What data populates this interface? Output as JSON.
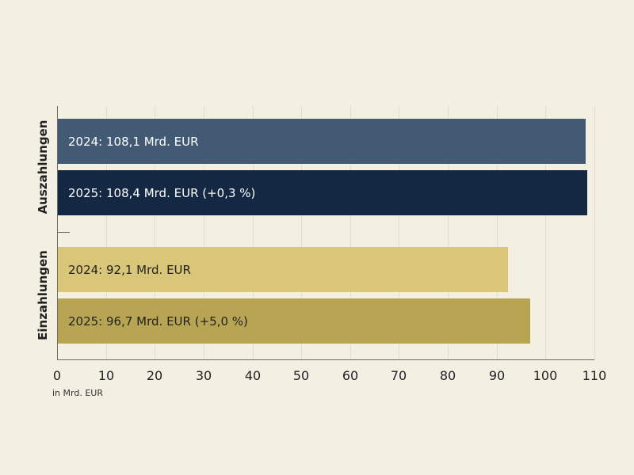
{
  "chart_data": {
    "type": "bar",
    "orientation": "horizontal",
    "title": "",
    "xlabel": "in Mrd. EUR",
    "ylabel": "",
    "xlim": [
      0,
      110
    ],
    "x_ticks": [
      "0",
      "10",
      "20",
      "30",
      "40",
      "50",
      "60",
      "70",
      "80",
      "90",
      "100",
      "110"
    ],
    "grid": true,
    "categories": [
      "Auszahlungen",
      "Einzahlungen"
    ],
    "series": [
      {
        "name": "2024",
        "values": [
          108.1,
          92.1
        ]
      },
      {
        "name": "2025",
        "values": [
          108.4,
          96.7
        ]
      }
    ],
    "bars": [
      {
        "group": "Auszahlungen",
        "year": "2024",
        "value": 108.1,
        "label": "2024: 108,1 Mrd. EUR",
        "color": "#435a74",
        "text_color": "#ffffff"
      },
      {
        "group": "Auszahlungen",
        "year": "2025",
        "value": 108.4,
        "label": "2025: 108,4 Mrd. EUR (+0,3 %)",
        "color": "#142843",
        "text_color": "#ffffff"
      },
      {
        "group": "Einzahlungen",
        "year": "2024",
        "value": 92.1,
        "label": "2024: 92,1 Mrd. EUR",
        "color": "#d9c678",
        "text_color": "#222222"
      },
      {
        "group": "Einzahlungen",
        "year": "2025",
        "value": 96.7,
        "label": "2025: 96,7 Mrd. EUR (+5,0 %)",
        "color": "#b8a553",
        "text_color": "#222222"
      }
    ]
  },
  "labels": {
    "group_1": "Auszahlungen",
    "group_2": "Einzahlungen",
    "unit": "in Mrd. EUR"
  }
}
